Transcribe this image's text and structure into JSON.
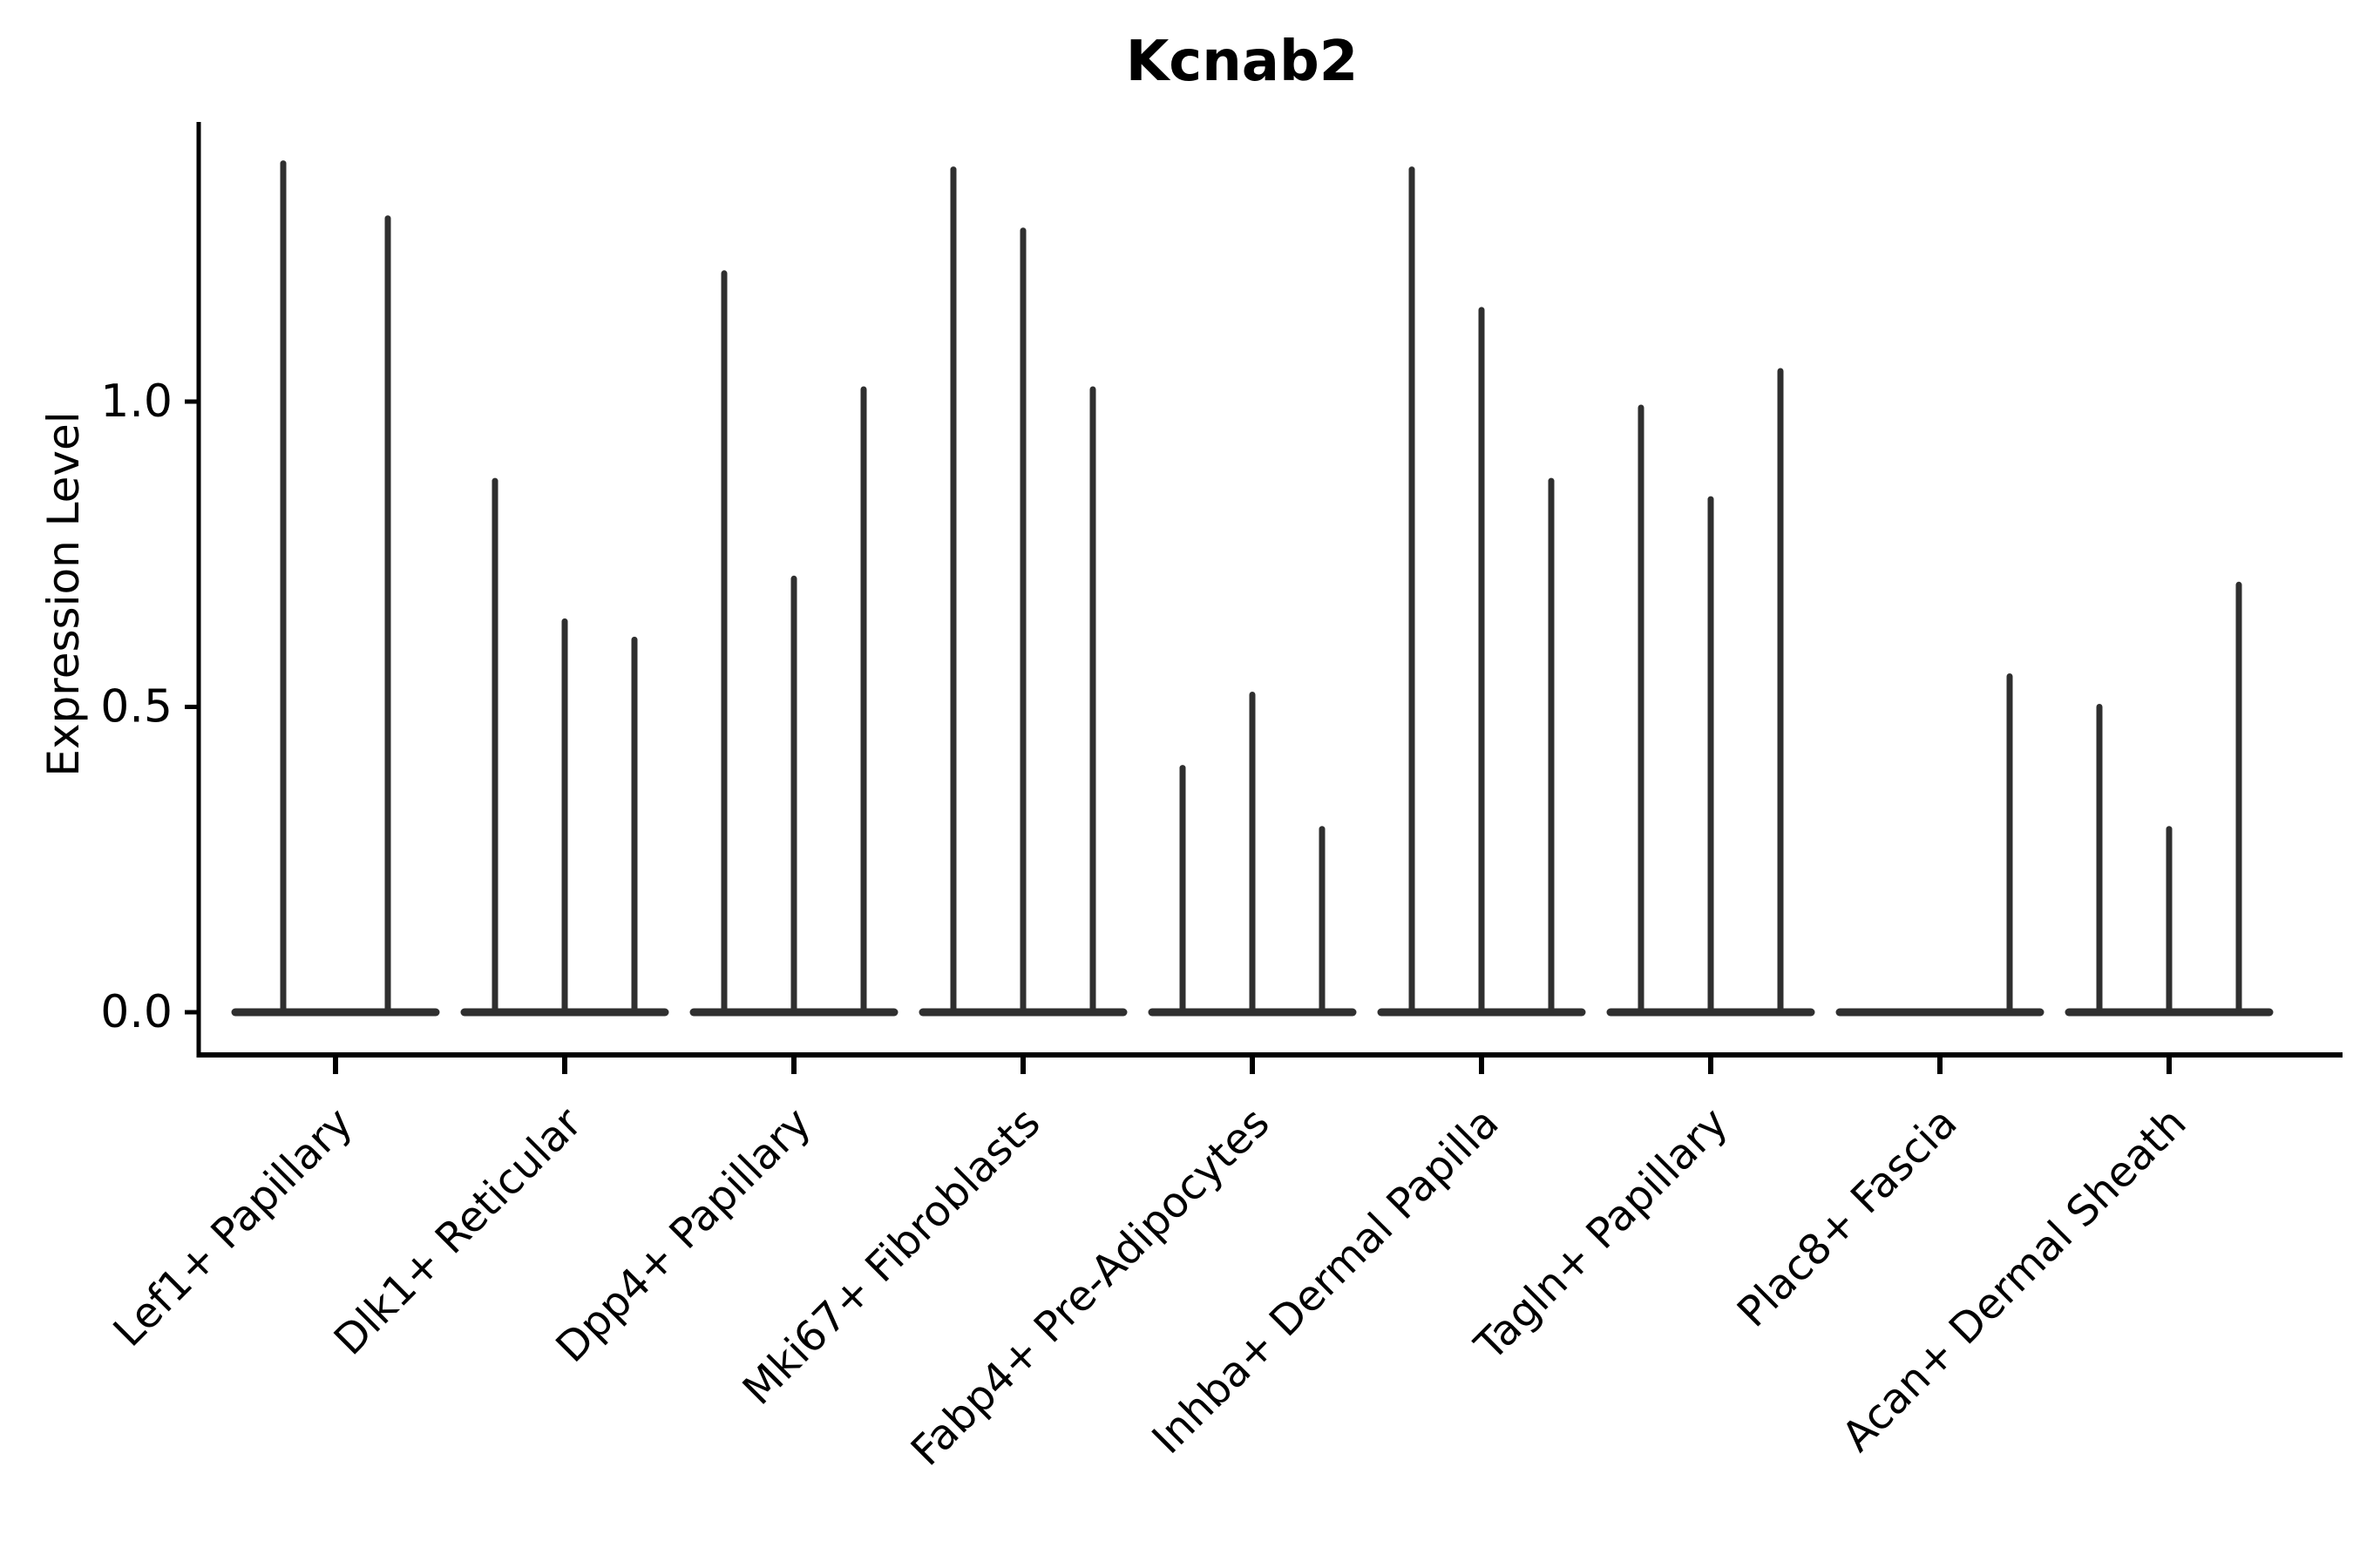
{
  "chart_data": {
    "type": "violin",
    "title": "Kcnab2",
    "ylabel": "Expression Level",
    "xlabel": "",
    "legend": null,
    "grid": false,
    "background": "#ffffff",
    "colors": {
      "violin_line": "#2f2f2f",
      "axis": "#000000",
      "text": "#000000"
    },
    "yticks": [
      {
        "label": "0.0",
        "value": 0.0
      },
      {
        "label": "0.5",
        "value": 0.5
      },
      {
        "label": "1.0",
        "value": 1.0
      }
    ],
    "ylim": [
      0.0,
      1.46
    ],
    "categories": [
      "Lef1+ Papillary",
      "Dlk1+ Reticular",
      "Dpp4+ Papillary",
      "Mki67+ Fibroblasts",
      "Fabp4+ Pre-Adipocytes",
      "Inhba+ Dermal Papilla",
      "Tagln+ Papillary",
      "Plac8+ Fascia",
      "Acan+ Dermal Sheath"
    ],
    "distribution_note": "Each category shows thin needle-like violins; expression mass is concentrated at 0 (flat wide base) with a narrow spike up to the max expression value.",
    "groups": [
      {
        "category": "Lef1+ Papillary",
        "violin_maxima": [
          1.39,
          1.3
        ]
      },
      {
        "category": "Dlk1+ Reticular",
        "violin_maxima": [
          0.87,
          0.64,
          0.61
        ]
      },
      {
        "category": "Dpp4+ Papillary",
        "violin_maxima": [
          1.21,
          0.71,
          1.02
        ]
      },
      {
        "category": "Mki67+ Fibroblasts",
        "violin_maxima": [
          1.38,
          1.28,
          1.02
        ]
      },
      {
        "category": "Fabp4+ Pre-Adipocytes",
        "violin_maxima": [
          0.4,
          0.52,
          0.3
        ]
      },
      {
        "category": "Inhba+ Dermal Papilla",
        "violin_maxima": [
          1.38,
          1.15,
          0.87
        ]
      },
      {
        "category": "Tagln+ Papillary",
        "violin_maxima": [
          0.99,
          0.84,
          1.05
        ]
      },
      {
        "category": "Plac8+ Fascia",
        "violin_maxima": [
          0.0,
          0.0,
          0.55
        ]
      },
      {
        "category": "Acan+ Dermal Sheath",
        "violin_maxima": [
          0.5,
          0.3,
          0.7
        ]
      }
    ]
  }
}
